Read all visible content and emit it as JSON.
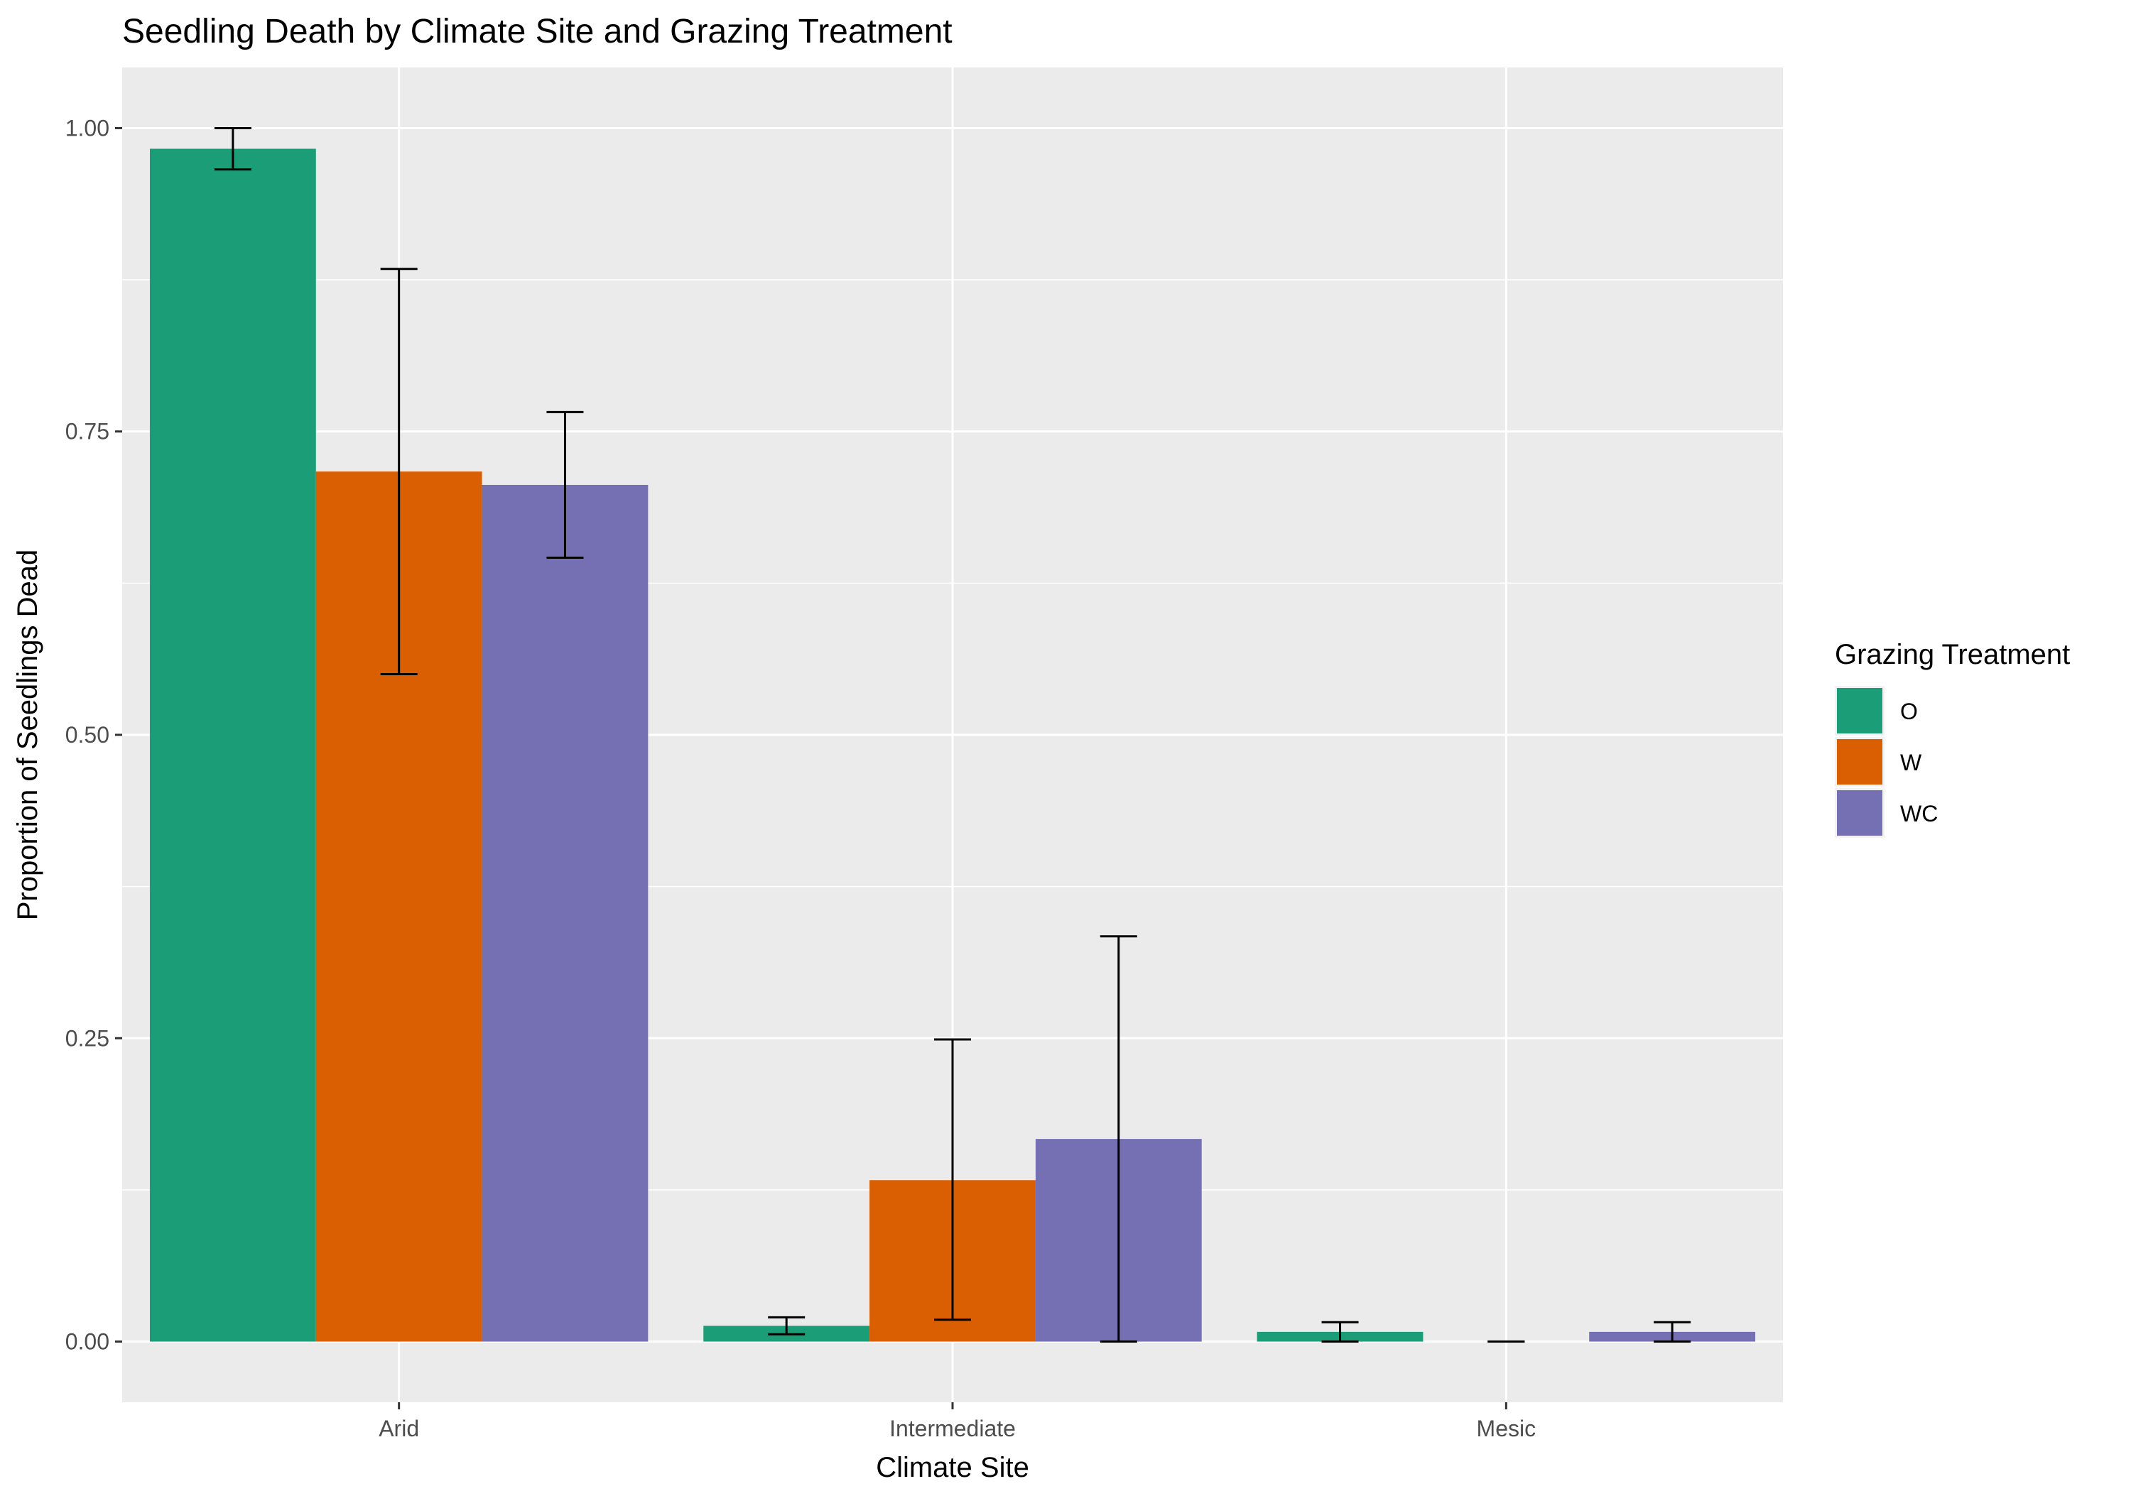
{
  "chart_data": {
    "type": "bar",
    "title": "Seedling Death by Climate Site and Grazing Treatment",
    "xlabel": "Climate Site",
    "ylabel": "Proportion of Seedlings Dead",
    "categories": [
      "Arid",
      "Intermediate",
      "Mesic"
    ],
    "ylim": [
      -0.05,
      1.05
    ],
    "yticks": [
      0.0,
      0.25,
      0.5,
      0.75,
      1.0
    ],
    "ytick_labels": [
      "0.00",
      "0.25",
      "0.50",
      "0.75",
      "1.00"
    ],
    "grid": true,
    "legend": {
      "title": "Grazing Treatment",
      "placement": "right"
    },
    "series": [
      {
        "name": "O",
        "color": "#1b9e77",
        "values": [
          0.983,
          0.013,
          0.008
        ],
        "err_low": [
          0.966,
          0.006,
          0.0
        ],
        "err_high": [
          1.0,
          0.02,
          0.016
        ]
      },
      {
        "name": "W",
        "color": "#d95f02",
        "values": [
          0.717,
          0.133,
          0.0
        ],
        "err_low": [
          0.55,
          0.018,
          0.0
        ],
        "err_high": [
          0.884,
          0.249,
          0.0
        ]
      },
      {
        "name": "WC",
        "color": "#7570b3",
        "values": [
          0.706,
          0.167,
          0.008
        ],
        "err_low": [
          0.646,
          0.0,
          0.0
        ],
        "err_high": [
          0.766,
          0.334,
          0.016
        ]
      }
    ]
  }
}
